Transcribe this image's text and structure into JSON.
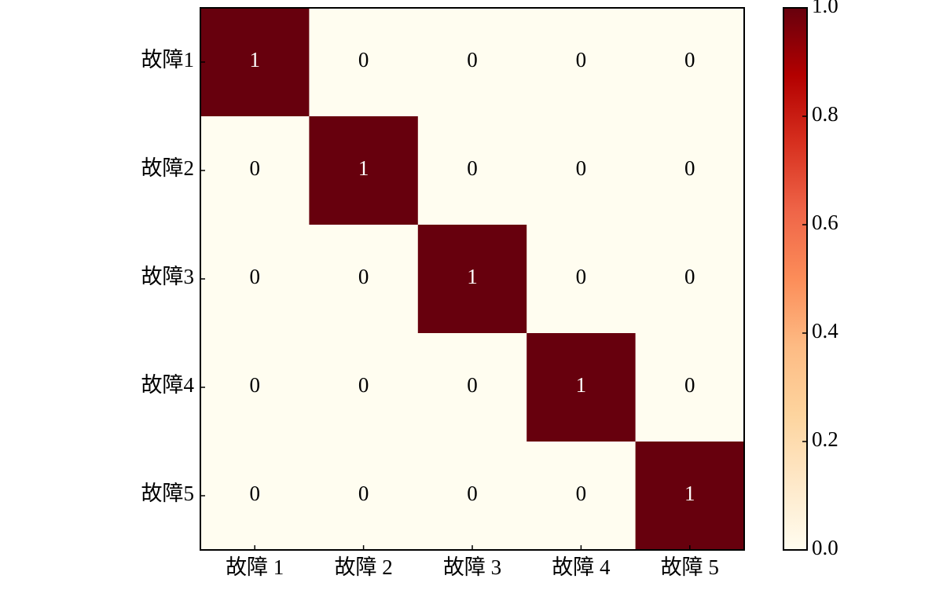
{
  "chart_data": {
    "type": "heatmap",
    "x_categories": [
      "故障 1",
      "故障 2",
      "故障 3",
      "故障 4",
      "故障 5"
    ],
    "y_categories": [
      "故障1",
      "故障2",
      "故障3",
      "故障4",
      "故障5"
    ],
    "values": [
      [
        1,
        0,
        0,
        0,
        0
      ],
      [
        0,
        1,
        0,
        0,
        0
      ],
      [
        0,
        0,
        1,
        0,
        0
      ],
      [
        0,
        0,
        0,
        1,
        0
      ],
      [
        0,
        0,
        0,
        0,
        1
      ]
    ],
    "colormap": [
      "#fffdf0",
      "#fee8c8",
      "#fdd49e",
      "#fdbb84",
      "#fc8d59",
      "#ef6548",
      "#d7301f",
      "#b30000",
      "#67000d"
    ],
    "clim": [
      0,
      1
    ],
    "cbar_ticks": [
      {
        "value": 0,
        "label": "0.0"
      },
      {
        "value": 0.2,
        "label": "0.2"
      },
      {
        "value": 0.4,
        "label": "0.4"
      },
      {
        "value": 0.6,
        "label": "0.6"
      },
      {
        "value": 0.8,
        "label": "0.8"
      },
      {
        "value": 1,
        "label": "1.0"
      }
    ]
  }
}
